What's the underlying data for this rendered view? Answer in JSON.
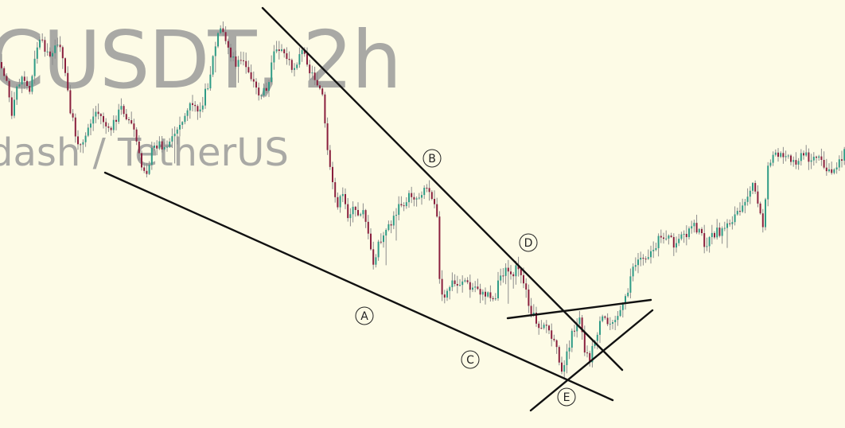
{
  "watermark": {
    "symbol": "CUSDT, 2h",
    "description": "dash / TetherUS"
  },
  "colors": {
    "background": "#fdfbe6",
    "up": "#2f9b86",
    "down": "#8a1f3d",
    "wick": "#8c8c8c",
    "trendline": "#111111",
    "watermark": "#a9a9a5"
  },
  "chart_data": {
    "type": "candlestick",
    "title": "",
    "xlabel": "",
    "ylabel": "",
    "grid": false,
    "legend": "none",
    "price_path": [
      [
        0,
        78
      ],
      [
        8,
        102
      ],
      [
        14,
        152
      ],
      [
        20,
        110
      ],
      [
        28,
        95
      ],
      [
        36,
        118
      ],
      [
        44,
        60
      ],
      [
        52,
        48
      ],
      [
        60,
        75
      ],
      [
        68,
        55
      ],
      [
        78,
        70
      ],
      [
        86,
        130
      ],
      [
        94,
        170
      ],
      [
        102,
        188
      ],
      [
        110,
        160
      ],
      [
        120,
        140
      ],
      [
        128,
        150
      ],
      [
        136,
        168
      ],
      [
        144,
        150
      ],
      [
        152,
        135
      ],
      [
        160,
        150
      ],
      [
        168,
        165
      ],
      [
        176,
        210
      ],
      [
        184,
        215
      ],
      [
        190,
        190
      ],
      [
        198,
        180
      ],
      [
        206,
        185
      ],
      [
        214,
        175
      ],
      [
        222,
        165
      ],
      [
        230,
        150
      ],
      [
        238,
        130
      ],
      [
        246,
        138
      ],
      [
        254,
        128
      ],
      [
        262,
        100
      ],
      [
        268,
        65
      ],
      [
        275,
        40
      ],
      [
        282,
        45
      ],
      [
        288,
        70
      ],
      [
        296,
        82
      ],
      [
        304,
        78
      ],
      [
        312,
        90
      ],
      [
        320,
        110
      ],
      [
        326,
        120
      ],
      [
        332,
        115
      ],
      [
        338,
        95
      ],
      [
        344,
        55
      ],
      [
        352,
        60
      ],
      [
        360,
        75
      ],
      [
        368,
        85
      ],
      [
        376,
        70
      ],
      [
        382,
        62
      ],
      [
        388,
        90
      ],
      [
        396,
        100
      ],
      [
        404,
        120
      ],
      [
        410,
        190
      ],
      [
        416,
        230
      ],
      [
        422,
        258
      ],
      [
        430,
        248
      ],
      [
        436,
        270
      ],
      [
        442,
        265
      ],
      [
        450,
        270
      ],
      [
        456,
        260
      ],
      [
        462,
        300
      ],
      [
        468,
        335
      ],
      [
        474,
        310
      ],
      [
        480,
        300
      ],
      [
        486,
        290
      ],
      [
        492,
        280
      ],
      [
        500,
        260
      ],
      [
        508,
        252
      ],
      [
        516,
        245
      ],
      [
        524,
        250
      ],
      [
        532,
        235
      ],
      [
        540,
        240
      ],
      [
        548,
        262
      ],
      [
        552,
        370
      ],
      [
        558,
        378
      ],
      [
        566,
        355
      ],
      [
        574,
        360
      ],
      [
        582,
        350
      ],
      [
        590,
        365
      ],
      [
        598,
        360
      ],
      [
        606,
        372
      ],
      [
        614,
        368
      ],
      [
        620,
        380
      ],
      [
        626,
        350
      ],
      [
        634,
        340
      ],
      [
        642,
        345
      ],
      [
        650,
        335
      ],
      [
        656,
        350
      ],
      [
        662,
        375
      ],
      [
        668,
        395
      ],
      [
        676,
        410
      ],
      [
        684,
        405
      ],
      [
        692,
        425
      ],
      [
        700,
        445
      ],
      [
        706,
        465
      ],
      [
        712,
        440
      ],
      [
        718,
        420
      ],
      [
        724,
        405
      ],
      [
        728,
        395
      ],
      [
        734,
        440
      ],
      [
        740,
        452
      ],
      [
        746,
        430
      ],
      [
        752,
        410
      ],
      [
        758,
        400
      ],
      [
        764,
        410
      ],
      [
        770,
        398
      ],
      [
        776,
        395
      ],
      [
        782,
        385
      ],
      [
        788,
        370
      ],
      [
        792,
        340
      ],
      [
        800,
        328
      ],
      [
        808,
        322
      ],
      [
        816,
        320
      ],
      [
        824,
        305
      ],
      [
        832,
        295
      ],
      [
        840,
        300
      ],
      [
        848,
        310
      ],
      [
        856,
        298
      ],
      [
        864,
        290
      ],
      [
        872,
        285
      ],
      [
        880,
        295
      ],
      [
        886,
        310
      ],
      [
        892,
        300
      ],
      [
        900,
        292
      ],
      [
        908,
        290
      ],
      [
        916,
        280
      ],
      [
        924,
        270
      ],
      [
        932,
        255
      ],
      [
        940,
        240
      ],
      [
        946,
        235
      ],
      [
        952,
        260
      ],
      [
        958,
        285
      ],
      [
        964,
        210
      ],
      [
        970,
        195
      ],
      [
        978,
        200
      ],
      [
        986,
        190
      ],
      [
        994,
        205
      ],
      [
        1002,
        200
      ],
      [
        1010,
        195
      ],
      [
        1018,
        200
      ],
      [
        1026,
        198
      ],
      [
        1034,
        210
      ],
      [
        1042,
        220
      ],
      [
        1050,
        208
      ],
      [
        1058,
        195
      ],
      [
        1062,
        190
      ]
    ],
    "trendlines": [
      {
        "name": "upper-trendline-B-D",
        "from": [
          330,
          10
        ],
        "to": [
          782,
          465
        ]
      },
      {
        "name": "lower-trendline-A-C-E",
        "from": [
          132,
          217
        ],
        "to": [
          770,
          503
        ]
      },
      {
        "name": "triangle-top-line",
        "from": [
          638,
          400
        ],
        "to": [
          818,
          377
        ]
      },
      {
        "name": "triangle-bottom-line",
        "from": [
          667,
          516
        ],
        "to": [
          820,
          390
        ]
      }
    ],
    "annotations": [
      {
        "label": "A",
        "at": [
          458,
          397
        ]
      },
      {
        "label": "B",
        "at": [
          543,
          199
        ]
      },
      {
        "label": "C",
        "at": [
          591,
          452
        ]
      },
      {
        "label": "D",
        "at": [
          664,
          305
        ]
      },
      {
        "label": "E",
        "at": [
          712,
          499
        ]
      }
    ]
  }
}
